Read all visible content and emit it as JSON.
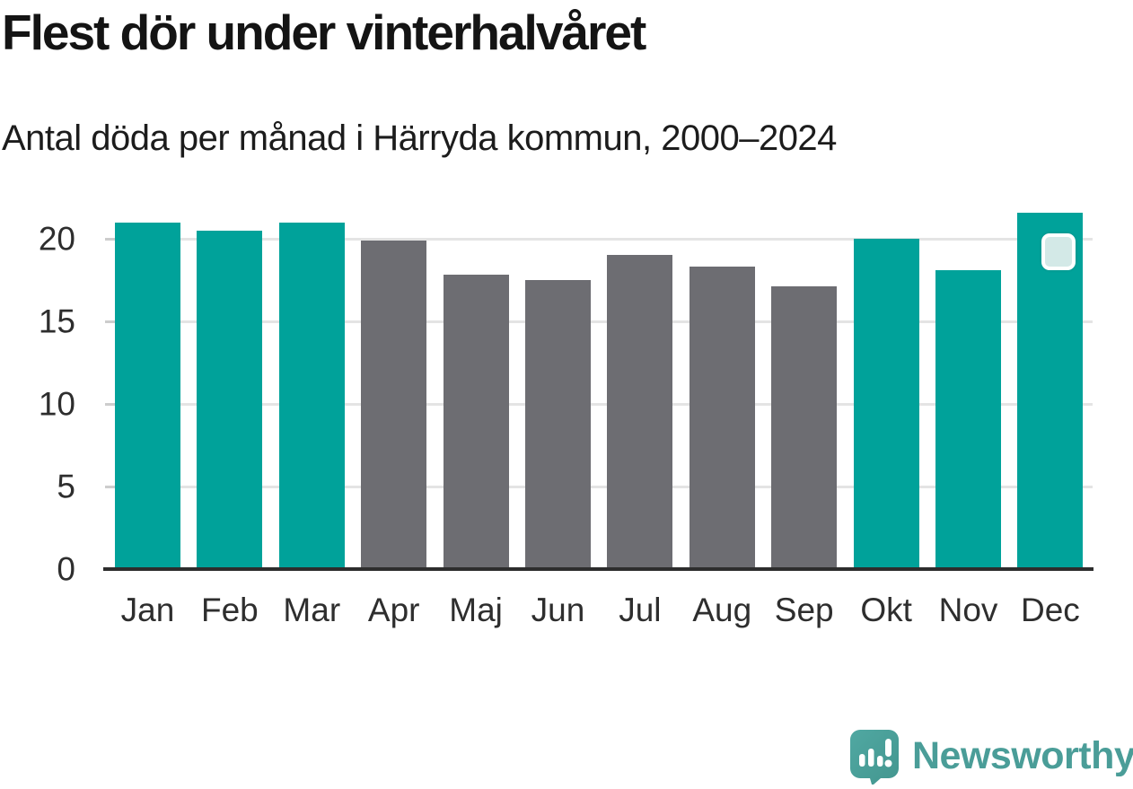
{
  "header": {
    "title": "Flest dör under vinterhalvåret",
    "subtitle": "Antal döda per månad i Härryda kommun, 2000–2024"
  },
  "chart_data": {
    "type": "bar",
    "title": "Flest dör under vinterhalvåret",
    "subtitle": "Antal döda per månad i Härryda kommun, 2000–2024",
    "categories": [
      "Jan",
      "Feb",
      "Mar",
      "Apr",
      "Maj",
      "Jun",
      "Jul",
      "Aug",
      "Sep",
      "Okt",
      "Nov",
      "Dec"
    ],
    "values": [
      21.0,
      20.5,
      21.0,
      19.9,
      17.8,
      17.5,
      19.0,
      18.3,
      17.1,
      20.0,
      18.1,
      21.6
    ],
    "bar_groups": [
      "winter",
      "winter",
      "winter",
      "summer",
      "summer",
      "summer",
      "summer",
      "summer",
      "summer",
      "winter",
      "winter",
      "winter"
    ],
    "xlabel": "",
    "ylabel": "",
    "yticks": [
      0,
      5,
      10,
      15,
      20
    ],
    "ylim": [
      0,
      22
    ],
    "grid": "horizontal",
    "legend": "none",
    "colors": {
      "winter": "#00a29a",
      "summer": "#6d6d72",
      "gridline": "#e4e4e4",
      "baseline": "#2d2d2d",
      "tick_text": "#2e2e2e"
    },
    "marker": {
      "category": "Dec",
      "shape": "rounded-square",
      "fill": "#d3e9e7",
      "border": "#ffffff"
    }
  },
  "footer": {
    "brand": "Newsworthy",
    "brand_color": "#4a9d98",
    "logo_icon": "newsworthy-bubble-barchart-icon"
  }
}
